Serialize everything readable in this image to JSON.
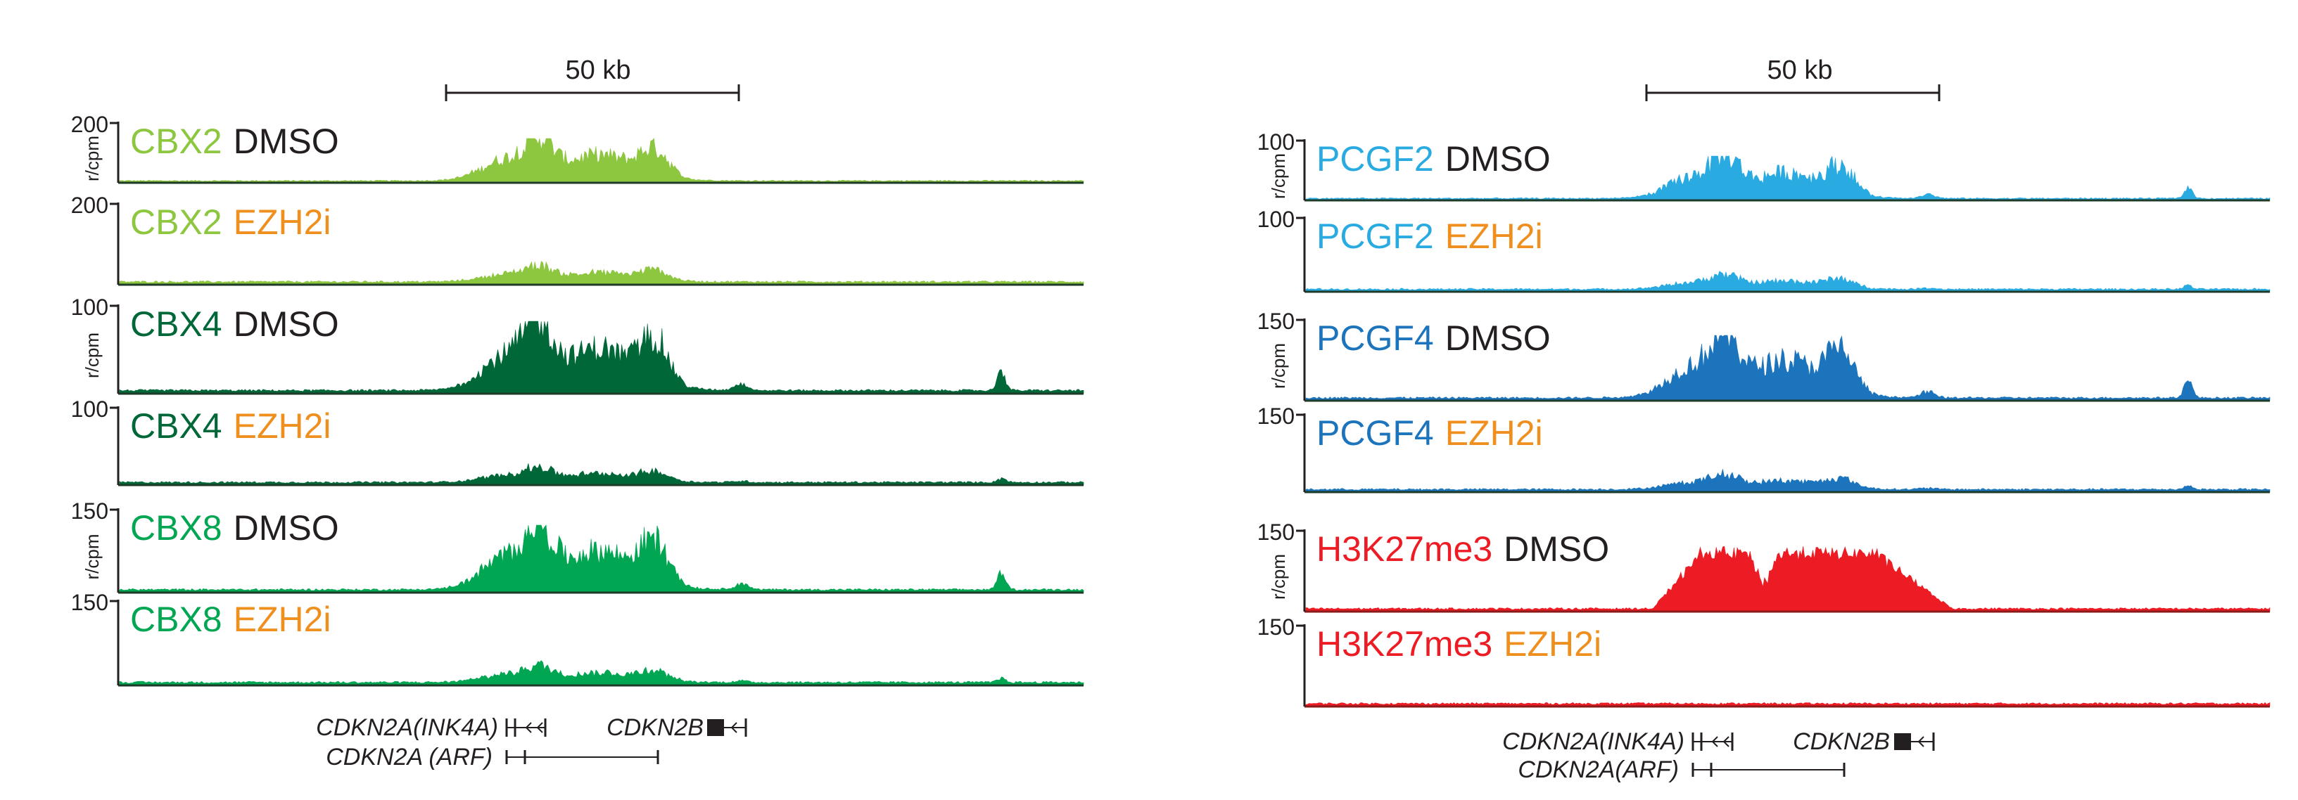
{
  "scale_bar_label": "50 kb",
  "y_unit": "r/cpm",
  "colors": {
    "dmso_text": "#231f20",
    "ezh2i_text": "#ef8f1e",
    "CBX2": "#8dc63f",
    "CBX4": "#006838",
    "CBX8": "#00a651",
    "PCGF2": "#29abe2",
    "PCGF4": "#1c75bc",
    "H3K27me3": "#ed1c24"
  },
  "panels": [
    {
      "id": "left",
      "tracks": [
        {
          "protein": "CBX2",
          "condition": "DMSO",
          "ymax": "200",
          "show_unit": true
        },
        {
          "protein": "CBX2",
          "condition": "EZH2i",
          "ymax": "200",
          "show_unit": false
        },
        {
          "protein": "CBX4",
          "condition": "DMSO",
          "ymax": "100",
          "show_unit": true
        },
        {
          "protein": "CBX4",
          "condition": "EZH2i",
          "ymax": "100",
          "show_unit": false
        },
        {
          "protein": "CBX8",
          "condition": "DMSO",
          "ymax": "150",
          "show_unit": true
        },
        {
          "protein": "CBX8",
          "condition": "EZH2i",
          "ymax": "150",
          "show_unit": false
        }
      ],
      "genes": {
        "ink4a": "CDKN2A(INK4A)",
        "arf": "CDKN2A (ARF)",
        "cdkn2b": "CDKN2B"
      }
    },
    {
      "id": "right",
      "tracks": [
        {
          "protein": "PCGF2",
          "condition": "DMSO",
          "ymax": "100",
          "show_unit": true
        },
        {
          "protein": "PCGF2",
          "condition": "EZH2i",
          "ymax": "100",
          "show_unit": false
        },
        {
          "protein": "PCGF4",
          "condition": "DMSO",
          "ymax": "150",
          "show_unit": true
        },
        {
          "protein": "PCGF4",
          "condition": "EZH2i",
          "ymax": "150",
          "show_unit": false
        },
        {
          "protein": "H3K27me3",
          "condition": "DMSO",
          "ymax": "150",
          "show_unit": true
        },
        {
          "protein": "H3K27me3",
          "condition": "EZH2i",
          "ymax": "150",
          "show_unit": false
        }
      ],
      "genes": {
        "ink4a": "CDKN2A(INK4A)",
        "arf": "CDKN2A(ARF)",
        "cdkn2b": "CDKN2B"
      }
    }
  ]
}
